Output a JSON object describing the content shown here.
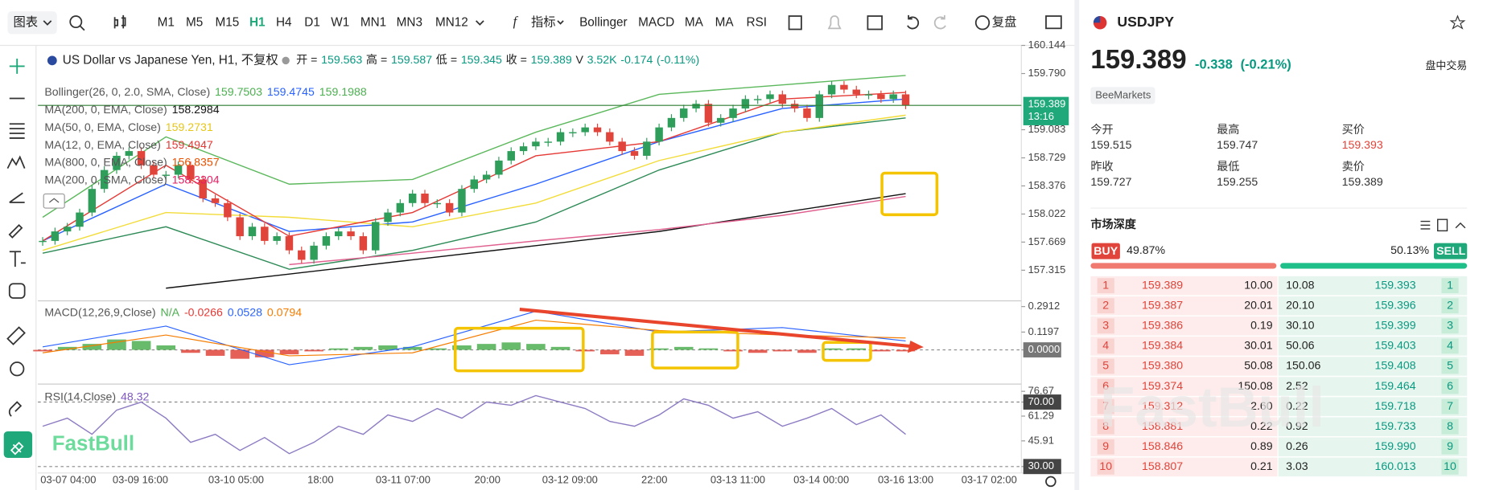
{
  "toolbar": {
    "chart_menu": "图表",
    "timeframes": [
      "M1",
      "M5",
      "M15",
      "H1",
      "H4",
      "D1",
      "W1",
      "MN1",
      "MN3",
      "MN12"
    ],
    "active_timeframe": 3,
    "indicators_menu": "指标",
    "indicators": [
      "Bollinger",
      "MACD",
      "MA",
      "MA",
      "RSI"
    ],
    "replay": "复盘"
  },
  "watermark": "FastBull",
  "chart_data": [
    {
      "type": "candlestick",
      "title": "US Dollar vs Japanese Yen, H1, 不复权",
      "header_items": [
        {
          "text": "开 =",
          "color": "#222"
        },
        {
          "text": "159.563",
          "color": "#089981"
        },
        {
          "text": "高 =",
          "color": "#222"
        },
        {
          "text": "159.587",
          "color": "#089981"
        },
        {
          "text": "低 =",
          "color": "#222"
        },
        {
          "text": "159.345",
          "color": "#089981"
        },
        {
          "text": "收 =",
          "color": "#222"
        },
        {
          "text": "159.389",
          "color": "#089981"
        },
        {
          "text": "V",
          "color": "#222"
        },
        {
          "text": "3.52K",
          "color": "#089981"
        },
        {
          "text": "-0.174",
          "color": "#089981"
        },
        {
          "text": "(-0.11%)",
          "color": "#089981"
        }
      ],
      "values": [
        157.684,
        157.803,
        157.862,
        158.041,
        158.338,
        158.576,
        158.755,
        158.814,
        158.636,
        158.517,
        158.517,
        158.636,
        158.457,
        158.219,
        158.16,
        157.981,
        157.743,
        157.862,
        157.684,
        157.743,
        157.565,
        157.446,
        157.624,
        157.743,
        157.803,
        157.743,
        157.565,
        157.922,
        158.041,
        158.16,
        158.279,
        158.16,
        158.16,
        158.041,
        158.338,
        158.457,
        158.517,
        158.695,
        158.814,
        158.874,
        158.933,
        158.933,
        159.052,
        159.052,
        159.112,
        159.052,
        158.933,
        158.814,
        158.755,
        158.933,
        159.112,
        159.231,
        159.35,
        159.409,
        159.171,
        159.231,
        159.35,
        159.469,
        159.469,
        159.528,
        159.409,
        159.35,
        159.231,
        159.528,
        159.647,
        159.588,
        159.528,
        159.528,
        159.469,
        159.528,
        159.389
      ],
      "up_color": "#2e9e5a",
      "down_color": "#e0443a",
      "x_labels": [
        "03-07 04:00",
        "03-09 16:00",
        "03-10 05:00",
        "18:00",
        "03-11 07:00",
        "20:00",
        "03-12 09:00",
        "22:00",
        "03-13 11:00",
        "03-14 00:00",
        "03-16 13:00",
        "03-17 02:00"
      ],
      "ylim": [
        156.93,
        160.144
      ],
      "yticks": [
        160.144,
        {
          "value": 159.79,
          "label": "159.790"
        },
        159.083,
        158.729,
        158.376,
        158.022,
        157.669,
        157.315
      ],
      "last_price": "159.389",
      "last_time": "13:16",
      "line_x": [
        0,
        10,
        20,
        30,
        40,
        50,
        60,
        70
      ],
      "overlays": [
        {
          "label": "Bollinger(26, 0, 2.0, SMA, Close)",
          "readouts": [
            {
              "text": "159.7503",
              "color": "#4caf50"
            },
            {
              "text": "159.4745",
              "color": "#2962ff"
            },
            {
              "text": "159.1988",
              "color": "#4caf50"
            }
          ],
          "series": [
            {
              "color": "#5cb85c",
              "values": [
                157.981,
                158.993,
                158.398,
                158.457,
                159.052,
                159.528,
                159.647,
                159.766
              ]
            },
            {
              "color": "#2962ff",
              "values": [
                157.684,
                158.398,
                157.803,
                157.922,
                158.398,
                158.933,
                159.35,
                159.469
              ]
            },
            {
              "color": "#2e8b57",
              "values": [
                157.529,
                157.862,
                157.327,
                157.565,
                157.922,
                158.576,
                159.052,
                159.231
              ]
            }
          ]
        },
        {
          "label": "MA(200, 0, EMA, Close)",
          "readouts": [
            {
              "text": "158.2984",
              "color": "#111"
            }
          ],
          "series": [
            {
              "color": "#111",
              "values": [
                null,
                157.089,
                157.267,
                157.446,
                157.624,
                157.803,
                158.041,
                158.279
              ]
            }
          ]
        },
        {
          "label": "MA(50, 0, EMA, Close)",
          "readouts": [
            {
              "text": "159.2731",
              "color": "#e6c619"
            }
          ],
          "series": [
            {
              "color": "#f2dc3a",
              "values": [
                157.565,
                158.041,
                157.981,
                157.862,
                158.16,
                158.695,
                159.052,
                159.266
              ]
            }
          ]
        },
        {
          "label": "MA(12, 0, EMA, Close)",
          "readouts": [
            {
              "text": "159.4947",
              "color": "#e53935"
            }
          ],
          "series": [
            {
              "color": "#e53935",
              "values": [
                157.684,
                158.636,
                157.743,
                158.041,
                158.755,
                158.933,
                159.469,
                159.552
              ]
            }
          ]
        },
        {
          "label": "MA(800, 0, EMA, Close)",
          "readouts": [
            {
              "text": "156.8357",
              "color": "#e65100"
            }
          ],
          "series": []
        },
        {
          "label": "MA(200, 0, SMA, Close)",
          "readouts": [
            {
              "text": "158.3304",
              "color": "#e91e63"
            }
          ],
          "series": [
            {
              "color": "#e06090",
              "values": [
                null,
                null,
                157.386,
                157.529,
                157.684,
                157.826,
                158.005,
                158.243
              ]
            }
          ]
        }
      ]
    },
    {
      "type": "macd",
      "title": "MACD(12,26,9,Close)",
      "readouts": [
        {
          "text": "N/A",
          "color": "#4caf50"
        },
        {
          "text": "-0.0266",
          "color": "#e53935"
        },
        {
          "text": "0.0528",
          "color": "#2962ff"
        },
        {
          "text": "0.0794",
          "color": "#f57c00"
        }
      ],
      "values": [
        -0.01,
        0.02,
        0.04,
        0.07,
        0.06,
        0.03,
        -0.02,
        -0.04,
        -0.06,
        -0.05,
        -0.03,
        -0.01,
        0.01,
        0.02,
        0.03,
        0.02,
        0.01,
        0.03,
        0.04,
        0.05,
        0.04,
        0.02,
        -0.01,
        -0.03,
        -0.04,
        0.01,
        0.02,
        0.01,
        -0.01,
        -0.02,
        -0.01,
        -0.02,
        0.01,
        0.01,
        -0.01,
        -0.01
      ],
      "up_color": "#4caf50",
      "down_color": "#e0443a",
      "line_x": [
        0,
        5,
        10,
        15,
        20,
        25,
        30,
        35
      ],
      "series": [
        {
          "color": "#2962ff",
          "values": [
            0.02,
            0.16,
            -0.1,
            0.02,
            0.26,
            0.12,
            0.15,
            0.06
          ]
        },
        {
          "color": "#f57c00",
          "values": [
            -0.02,
            0.1,
            -0.04,
            -0.02,
            0.2,
            0.13,
            0.1,
            0.08
          ]
        }
      ],
      "ylim": [
        -0.23,
        0.33
      ],
      "yticks": [
        0.2912,
        0.1197,
        {
          "value": 0,
          "label": "0.0000"
        }
      ]
    },
    {
      "type": "line",
      "title": "RSI(14,Close)",
      "readouts": [
        {
          "text": "48.32",
          "color": "#7e57c2"
        }
      ],
      "values": [
        55,
        60,
        50,
        65,
        70,
        60,
        45,
        50,
        40,
        48,
        38,
        45,
        55,
        50,
        62,
        58,
        66,
        60,
        70,
        68,
        74,
        70,
        66,
        58,
        55,
        62,
        72,
        68,
        60,
        64,
        55,
        60,
        66,
        56,
        62,
        50
      ],
      "color": "#8e7cc3",
      "ylim": [
        26,
        80
      ],
      "yticks": [
        76.67,
        {
          "value": 70,
          "label": "70.00"
        },
        61.29,
        45.91,
        {
          "value": 30,
          "label": "30.00"
        }
      ]
    }
  ],
  "quote": {
    "symbol": "USDJPY",
    "price": "159.389",
    "change": "-0.338",
    "change_pct": "(-0.21%)",
    "session": "盘中交易",
    "broker": "BeeMarkets",
    "stats": [
      {
        "label": "今开",
        "value": "159.515"
      },
      {
        "label": "最高",
        "value": "159.747"
      },
      {
        "label": "买价",
        "value": "159.393"
      },
      {
        "label": "昨收",
        "value": "159.727"
      },
      {
        "label": "最低",
        "value": "159.255"
      },
      {
        "label": "卖价",
        "value": "159.389"
      }
    ]
  },
  "depth": {
    "title": "市场深度",
    "buy": "BUY",
    "buy_pct": "49.87%",
    "sell_pct": "50.13%",
    "sell": "SELL",
    "rows": [
      [
        "1",
        "159.389",
        "10.00",
        "10.08",
        "159.393",
        "1"
      ],
      [
        "2",
        "159.387",
        "20.01",
        "20.10",
        "159.396",
        "2"
      ],
      [
        "3",
        "159.386",
        "0.19",
        "30.10",
        "159.399",
        "3"
      ],
      [
        "4",
        "159.384",
        "30.01",
        "50.06",
        "159.403",
        "4"
      ],
      [
        "5",
        "159.380",
        "50.08",
        "150.06",
        "159.408",
        "5"
      ],
      [
        "6",
        "159.374",
        "150.08",
        "2.52",
        "159.464",
        "6"
      ],
      [
        "7",
        "159.312",
        "2.60",
        "0.22",
        "159.718",
        "7"
      ],
      [
        "8",
        "158.881",
        "0.22",
        "0.92",
        "159.733",
        "8"
      ],
      [
        "9",
        "158.846",
        "0.89",
        "0.26",
        "159.990",
        "9"
      ],
      [
        "10",
        "158.807",
        "0.21",
        "3.03",
        "160.013",
        "10"
      ]
    ]
  }
}
